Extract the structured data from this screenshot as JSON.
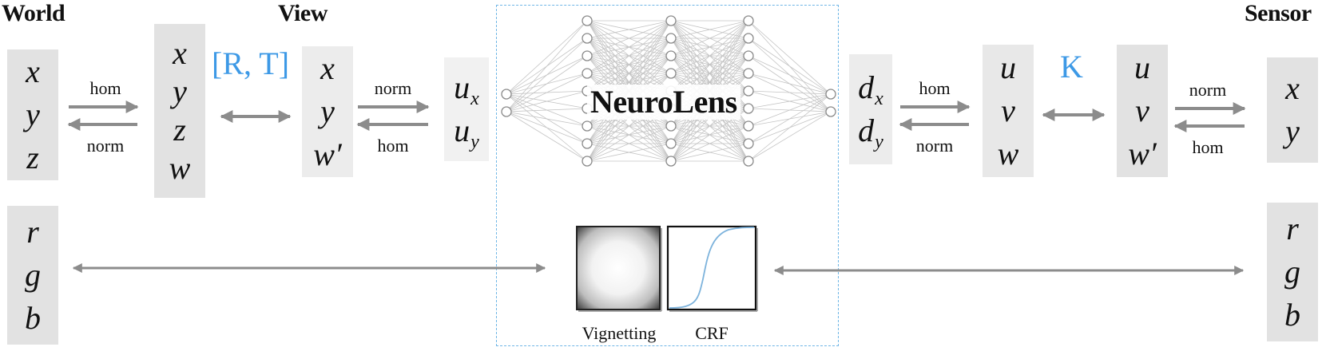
{
  "headings": {
    "world": "World",
    "view": "View",
    "sensor": "Sensor"
  },
  "vectors": {
    "world_xyz": [
      "x",
      "y",
      "z"
    ],
    "world_xyzw": [
      "x",
      "y",
      "z",
      "w"
    ],
    "view_xyw": [
      "x",
      "y",
      "w′"
    ],
    "view_u": {
      "base": "u",
      "sub_x": "x",
      "sub_y": "y"
    },
    "sensor_d": {
      "base": "d",
      "sub_x": "x",
      "sub_y": "y"
    },
    "sensor_uvw": [
      "u",
      "v",
      "w"
    ],
    "sensor_uvw_prime": [
      "u",
      "v",
      "w′"
    ],
    "sensor_xy": [
      "x",
      "y"
    ],
    "rgb": [
      "r",
      "g",
      "b"
    ]
  },
  "labels": {
    "hom": "hom",
    "norm": "norm",
    "rt": "[R, T]",
    "k": "K",
    "neurolens": "NeuroLens",
    "vignetting": "Vignetting",
    "crf": "CRF"
  },
  "colors": {
    "accent_blue": "#3d99e6",
    "box_gray": "#e2e2e2",
    "arrow_gray": "#8c8c8c",
    "curve_blue": "#7db3dc",
    "dashed_border": "#6fb6e6"
  }
}
